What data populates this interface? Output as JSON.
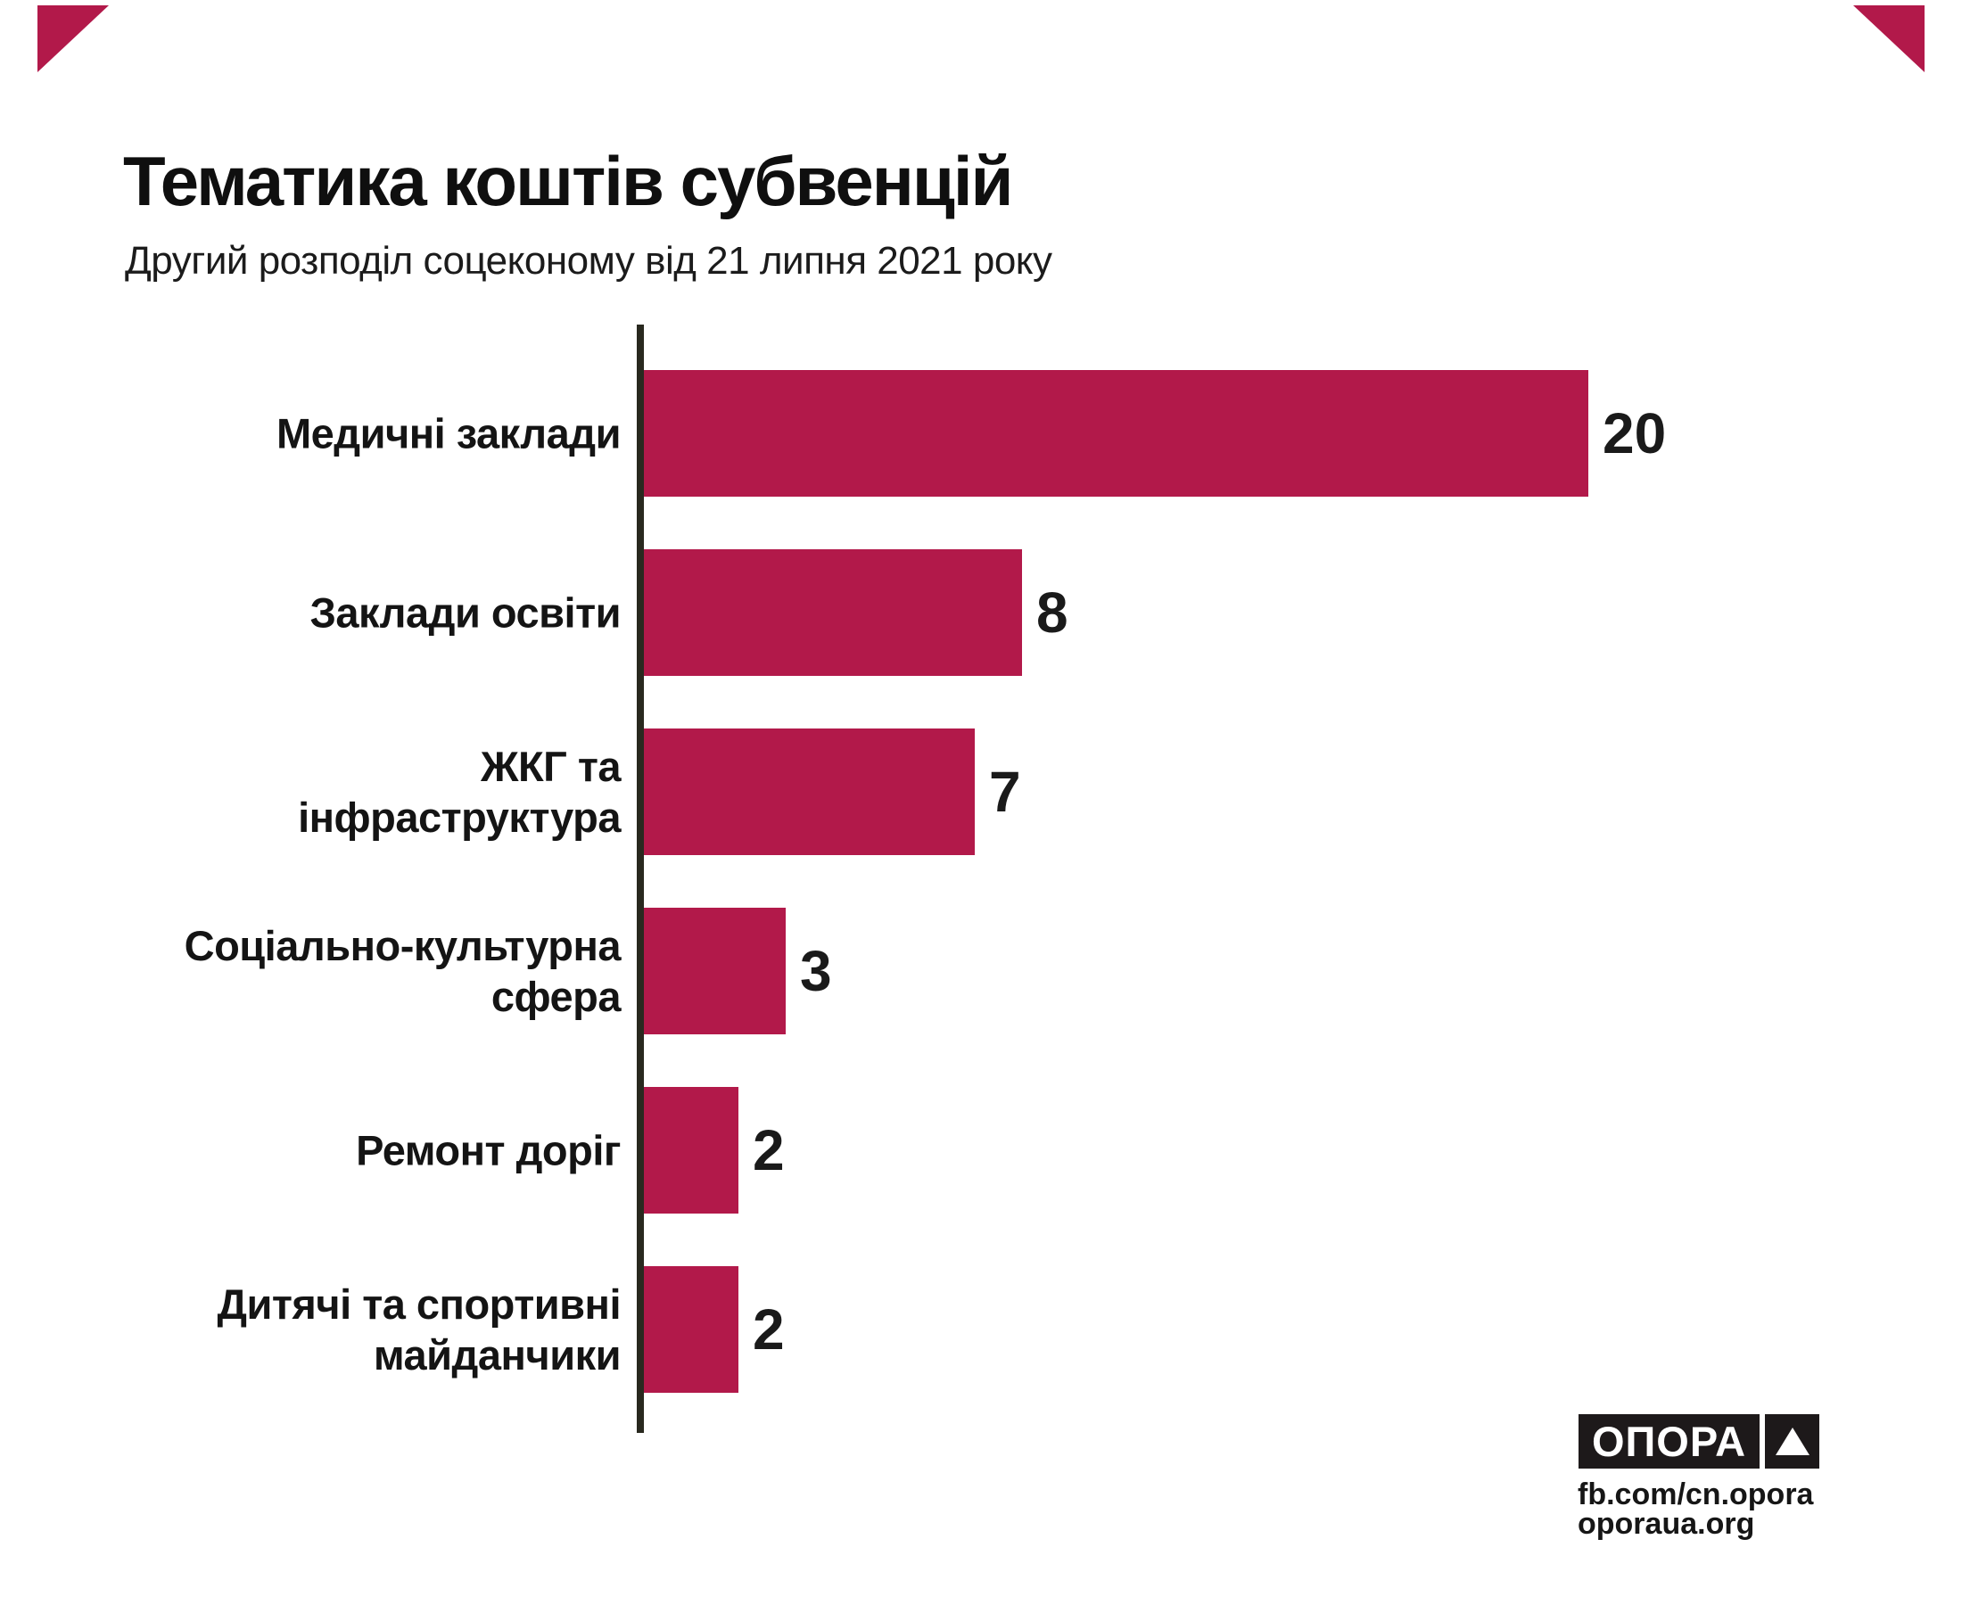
{
  "page": {
    "background": "#ffffff",
    "accent_red": "#b2194a"
  },
  "header": {
    "title": "Тематика коштів субвенцій",
    "subtitle": "Другий розподіл соцеконому від 21 липня 2021 року"
  },
  "chart_data": {
    "type": "bar",
    "orientation": "horizontal",
    "title": "Тематика коштів субвенцій",
    "subtitle": "Другий розподіл соцеконому від 21 липня 2021 року",
    "categories": [
      "Медичні заклади",
      "Заклади освіти",
      "ЖКГ та інфраструктура",
      "Соціально-культурна сфера",
      "Ремонт доріг",
      "Дитячі та спортивні майданчики"
    ],
    "label_lines": [
      [
        "Медичні заклади"
      ],
      [
        "Заклади освіти"
      ],
      [
        "ЖКГ та",
        "інфраструктура"
      ],
      [
        "Соціально-культурна",
        "сфера"
      ],
      [
        "Ремонт доріг"
      ],
      [
        "Дитячі та спортивні",
        "майданчики"
      ]
    ],
    "values": [
      20,
      8,
      7,
      3,
      2,
      2
    ],
    "value_labels": [
      "20",
      "8",
      "7",
      "3",
      "2",
      "2"
    ],
    "xlim": [
      0,
      20
    ],
    "bar_color": "#b2194a",
    "axis_color": "#29291f",
    "grid": false,
    "legend": false,
    "value_label_position": "right-of-bar"
  },
  "branding": {
    "logo_text": "ОПОРА",
    "logo_triangle_icon": "triangle-up-icon",
    "facebook": "fb.com/cn.opora",
    "website": "oporaua.org"
  }
}
